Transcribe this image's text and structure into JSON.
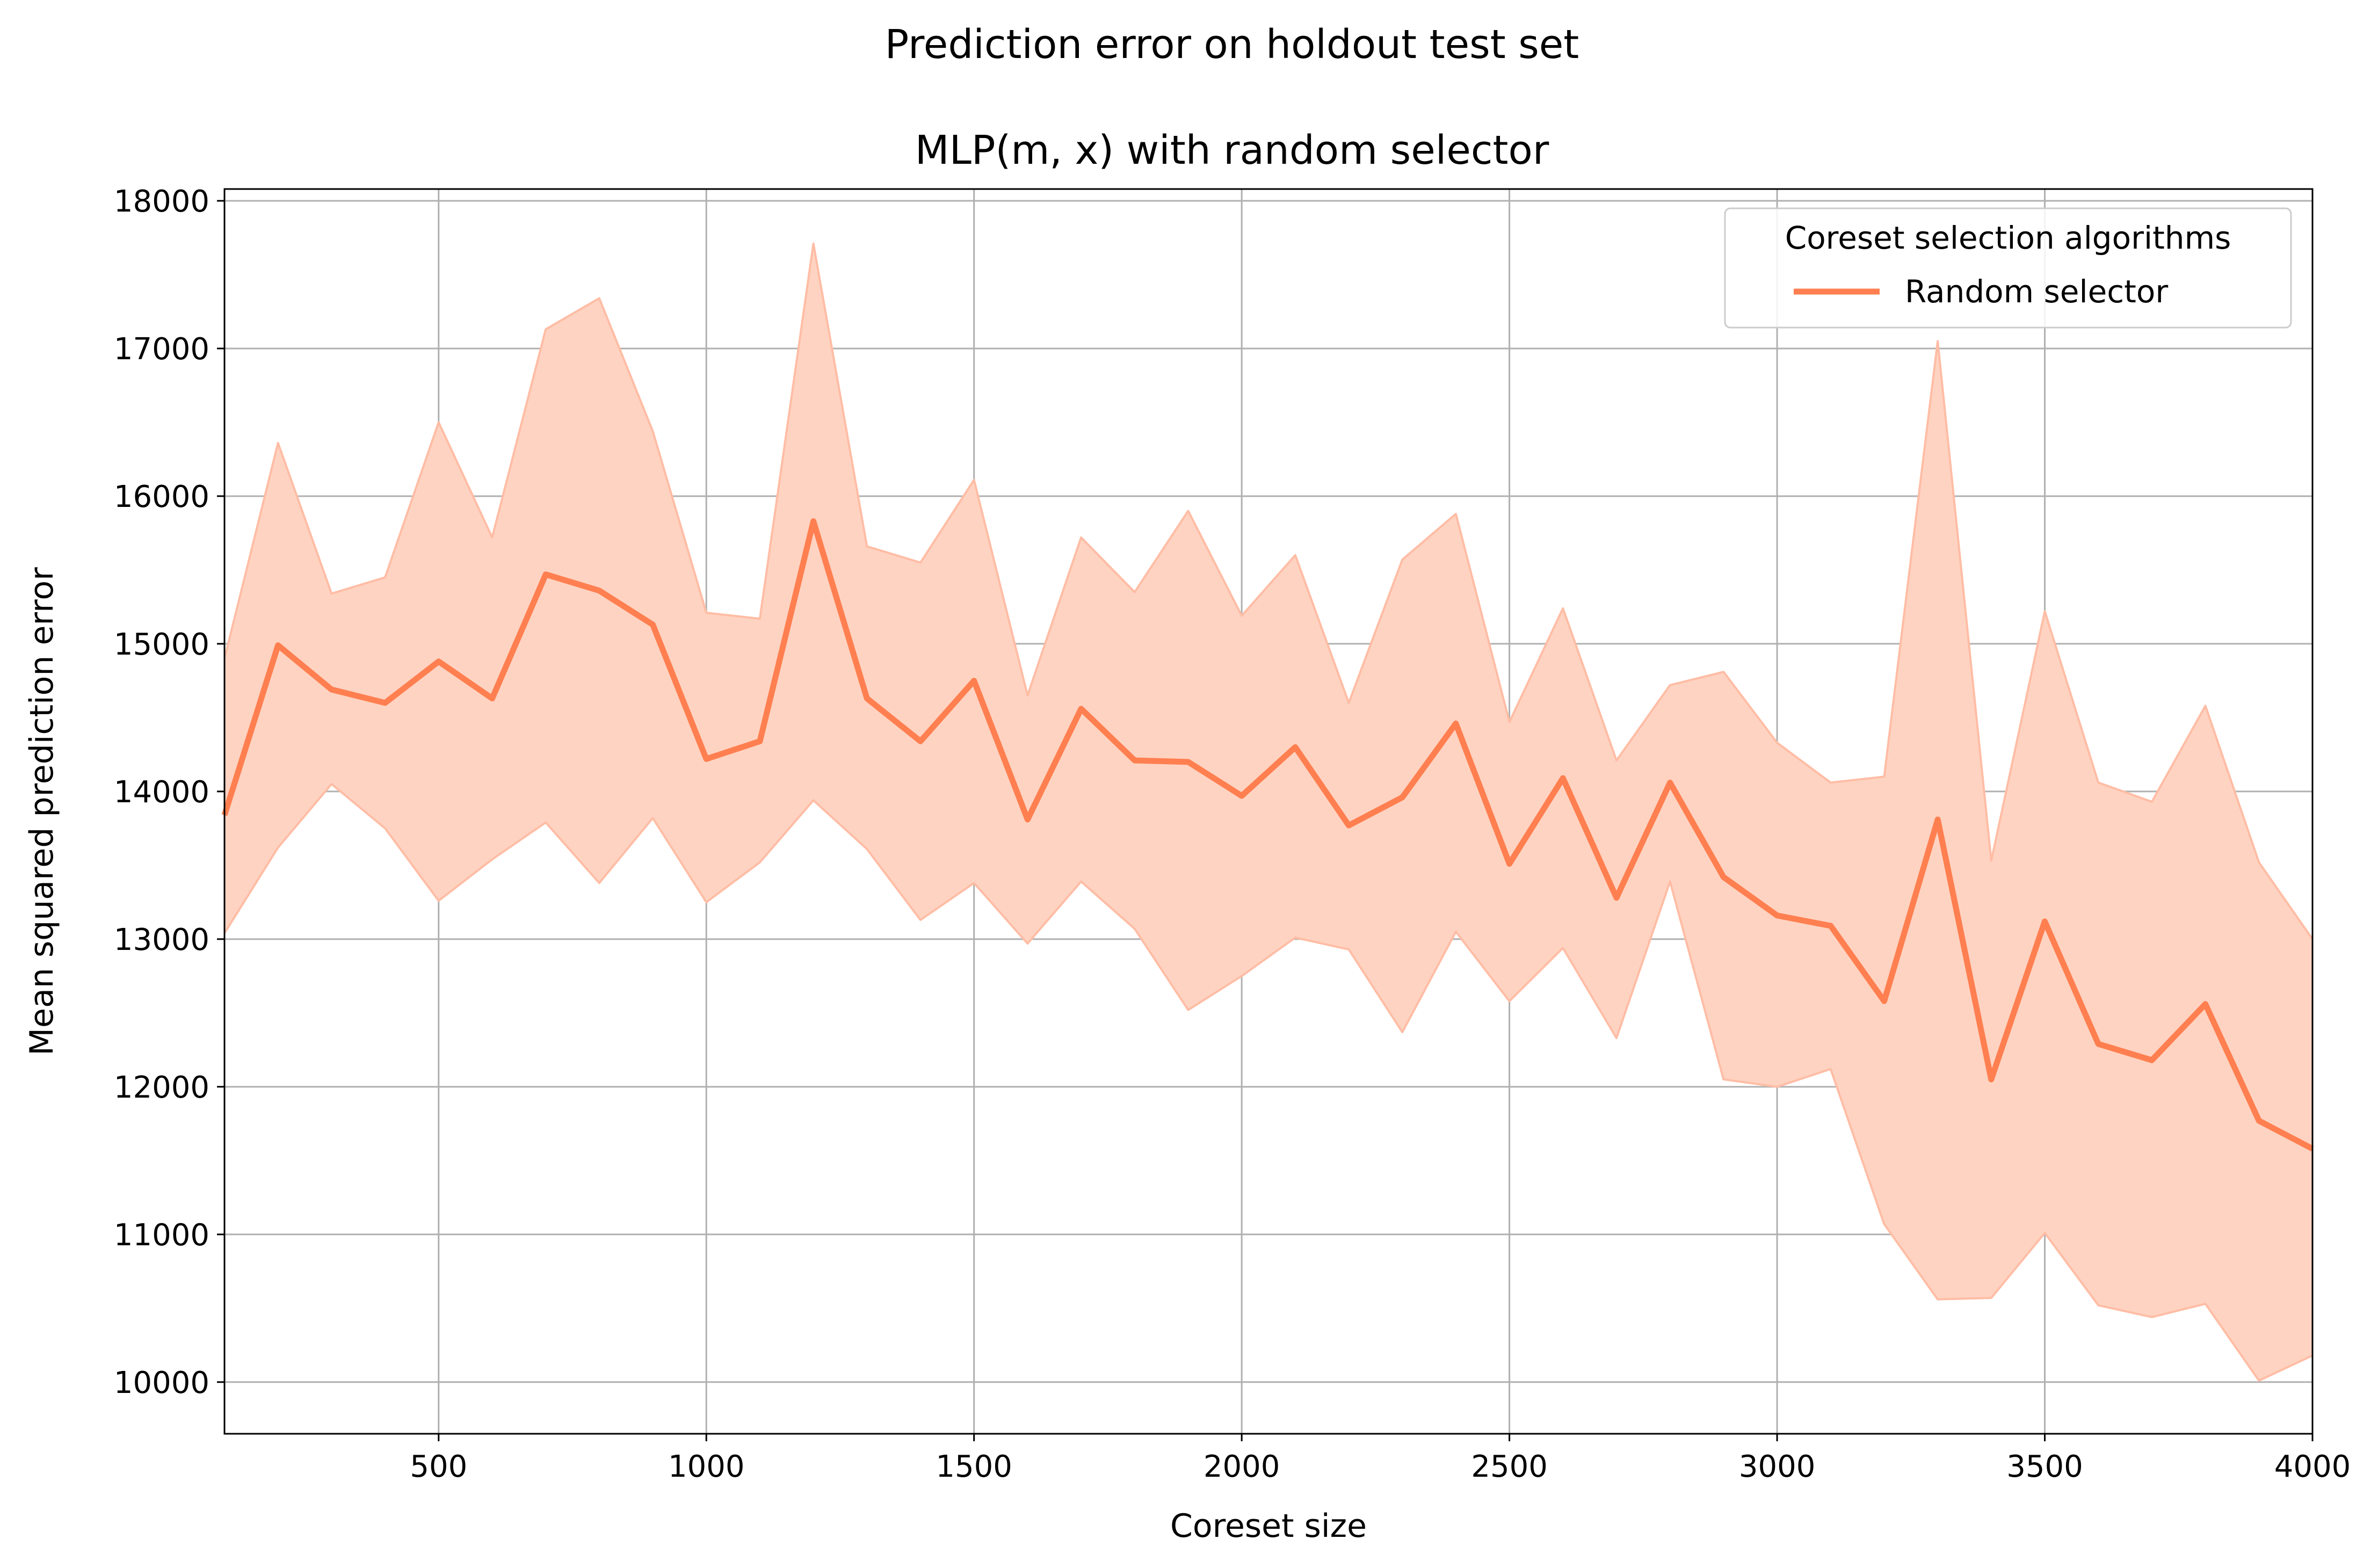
{
  "chart_data": {
    "type": "line",
    "suptitle": "Prediction error on holdout test set",
    "title": "MLP(m, x) with random selector",
    "xlabel": "Coreset size",
    "ylabel": "Mean squared prediction error",
    "xlim": [
      100,
      4000
    ],
    "ylim": [
      9650,
      18080
    ],
    "xticks": [
      500,
      1000,
      1500,
      2000,
      2500,
      3000,
      3500,
      4000
    ],
    "xtick_labels": [
      "500",
      "1000",
      "1500",
      "2000",
      "2500",
      "3000",
      "3500",
      "4000"
    ],
    "yticks": [
      10000,
      11000,
      12000,
      13000,
      14000,
      15000,
      16000,
      17000,
      18000
    ],
    "ytick_labels": [
      "10000",
      "11000",
      "12000",
      "13000",
      "14000",
      "15000",
      "16000",
      "17000",
      "18000"
    ],
    "grid": true,
    "legend": {
      "title": "Coreset selection algorithms",
      "placement": "top-right"
    },
    "series": [
      {
        "name": "Random selector",
        "color": "#ff7f50",
        "band_color": "#ffd3c2",
        "band_edge_color": "#ffbda5",
        "x": [
          100,
          200,
          300,
          400,
          500,
          600,
          700,
          800,
          900,
          1000,
          1100,
          1200,
          1300,
          1400,
          1500,
          1600,
          1700,
          1800,
          1900,
          2000,
          2100,
          2200,
          2300,
          2400,
          2500,
          2600,
          2700,
          2800,
          2900,
          3000,
          3100,
          3200,
          3300,
          3400,
          3500,
          3600,
          3700,
          3800,
          3900,
          4000
        ],
        "mean": [
          13840,
          14990,
          14690,
          14600,
          14880,
          14630,
          15470,
          15360,
          15130,
          14220,
          14340,
          15830,
          14630,
          14340,
          14750,
          13810,
          14560,
          14210,
          14200,
          13970,
          14300,
          13770,
          13960,
          14460,
          13510,
          14090,
          13280,
          14060,
          13420,
          13160,
          13090,
          12580,
          13810,
          12050,
          13120,
          12290,
          12180,
          12560,
          11770,
          11580
        ],
        "upper": [
          14900,
          16360,
          15340,
          15450,
          16500,
          15720,
          17130,
          17340,
          16440,
          15210,
          15170,
          17710,
          15660,
          15550,
          16110,
          14650,
          15720,
          15350,
          15900,
          15190,
          15600,
          14600,
          15570,
          15880,
          14470,
          15240,
          14210,
          14720,
          14810,
          14330,
          14060,
          14100,
          17050,
          13530,
          15220,
          14060,
          13930,
          14580,
          13520,
          13000
        ],
        "lower": [
          13040,
          13620,
          14050,
          13750,
          13260,
          13540,
          13790,
          13380,
          13820,
          13250,
          13520,
          13940,
          13610,
          13130,
          13380,
          12970,
          13390,
          13070,
          12520,
          12750,
          13010,
          12930,
          12370,
          13050,
          12580,
          12940,
          12330,
          13390,
          12050,
          12000,
          12120,
          11070,
          10560,
          10570,
          11010,
          10520,
          10440,
          10530,
          10010,
          10180
        ]
      }
    ]
  }
}
